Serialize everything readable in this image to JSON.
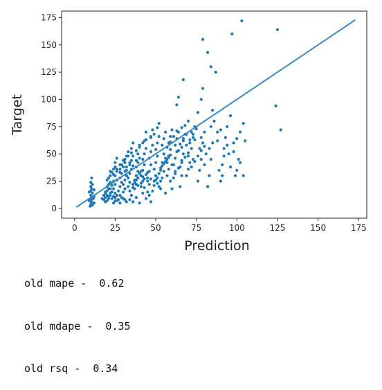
{
  "chart_data": {
    "type": "scatter",
    "xlabel": "Prediction",
    "ylabel": "Target",
    "xlim": [
      -8,
      180
    ],
    "ylim": [
      -9,
      181
    ],
    "xticks": [
      "0",
      "25",
      "50",
      "75",
      "100",
      "125",
      "150",
      "175"
    ],
    "yticks": [
      "0",
      "25",
      "50",
      "75",
      "100",
      "125",
      "150",
      "175"
    ],
    "xtick_values": [
      0,
      25,
      50,
      75,
      100,
      125,
      150,
      175
    ],
    "ytick_values": [
      0,
      25,
      50,
      75,
      100,
      125,
      150,
      175
    ],
    "grid": false,
    "point_color": "#1f77b4",
    "line_color": "#3b88c4",
    "reference_line": {
      "x": [
        1,
        173
      ],
      "y": [
        1,
        173
      ]
    },
    "points": [
      [
        9.5,
        2
      ],
      [
        10,
        4
      ],
      [
        10.5,
        6
      ],
      [
        10,
        8
      ],
      [
        11,
        10
      ],
      [
        10,
        12
      ],
      [
        11,
        14
      ],
      [
        10,
        16
      ],
      [
        10.5,
        18
      ],
      [
        10,
        20
      ],
      [
        11,
        22
      ],
      [
        10,
        24
      ],
      [
        10.5,
        28
      ],
      [
        11,
        3
      ],
      [
        12,
        5
      ],
      [
        9,
        7
      ],
      [
        11.5,
        9
      ],
      [
        12,
        11
      ],
      [
        9,
        15
      ],
      [
        12,
        17
      ],
      [
        18,
        8
      ],
      [
        19,
        10
      ],
      [
        20,
        12
      ],
      [
        19,
        14
      ],
      [
        20,
        16
      ],
      [
        21,
        18
      ],
      [
        20,
        20
      ],
      [
        21,
        22
      ],
      [
        22,
        24
      ],
      [
        19,
        6
      ],
      [
        21,
        9
      ],
      [
        22,
        12
      ],
      [
        23,
        15
      ],
      [
        22,
        18
      ],
      [
        23,
        21
      ],
      [
        24,
        25
      ],
      [
        21,
        28
      ],
      [
        22,
        30
      ],
      [
        23,
        33
      ],
      [
        24,
        36
      ],
      [
        25,
        10
      ],
      [
        25,
        14
      ],
      [
        24,
        18
      ],
      [
        25,
        22
      ],
      [
        26,
        26
      ],
      [
        25,
        30
      ],
      [
        26,
        34
      ],
      [
        25,
        38
      ],
      [
        25,
        42
      ],
      [
        26,
        46
      ],
      [
        27,
        8
      ],
      [
        28,
        12
      ],
      [
        27,
        16
      ],
      [
        28,
        20
      ],
      [
        29,
        24
      ],
      [
        28,
        28
      ],
      [
        29,
        32
      ],
      [
        28,
        36
      ],
      [
        29,
        40
      ],
      [
        30,
        44
      ],
      [
        30,
        15
      ],
      [
        31,
        18
      ],
      [
        30,
        22
      ],
      [
        31,
        26
      ],
      [
        32,
        30
      ],
      [
        31,
        34
      ],
      [
        32,
        38
      ],
      [
        31,
        42
      ],
      [
        32,
        48
      ],
      [
        33,
        52
      ],
      [
        33,
        20
      ],
      [
        34,
        24
      ],
      [
        33,
        28
      ],
      [
        34,
        32
      ],
      [
        35,
        36
      ],
      [
        34,
        40
      ],
      [
        35,
        44
      ],
      [
        36,
        48
      ],
      [
        35,
        55
      ],
      [
        36,
        60
      ],
      [
        37,
        18
      ],
      [
        38,
        22
      ],
      [
        37,
        26
      ],
      [
        38,
        30
      ],
      [
        39,
        34
      ],
      [
        38,
        38
      ],
      [
        39,
        42
      ],
      [
        40,
        46
      ],
      [
        39,
        50
      ],
      [
        40,
        58
      ],
      [
        41,
        20
      ],
      [
        42,
        25
      ],
      [
        41,
        30
      ],
      [
        42,
        35
      ],
      [
        43,
        40
      ],
      [
        42,
        45
      ],
      [
        43,
        50
      ],
      [
        44,
        55
      ],
      [
        43,
        62
      ],
      [
        44,
        70
      ],
      [
        45,
        15
      ],
      [
        46,
        22
      ],
      [
        45,
        28
      ],
      [
        46,
        34
      ],
      [
        47,
        40
      ],
      [
        46,
        46
      ],
      [
        47,
        52
      ],
      [
        48,
        58
      ],
      [
        47,
        66
      ],
      [
        48,
        72
      ],
      [
        49,
        25
      ],
      [
        50,
        30
      ],
      [
        49,
        36
      ],
      [
        50,
        42
      ],
      [
        51,
        48
      ],
      [
        50,
        54
      ],
      [
        51,
        60
      ],
      [
        52,
        66
      ],
      [
        51,
        74
      ],
      [
        52,
        78
      ],
      [
        53,
        18
      ],
      [
        54,
        28
      ],
      [
        53,
        35
      ],
      [
        54,
        42
      ],
      [
        55,
        50
      ],
      [
        54,
        58
      ],
      [
        55,
        64
      ],
      [
        56,
        70
      ],
      [
        55,
        34
      ],
      [
        56,
        46
      ],
      [
        57,
        30
      ],
      [
        58,
        36
      ],
      [
        57,
        42
      ],
      [
        58,
        48
      ],
      [
        59,
        54
      ],
      [
        58,
        60
      ],
      [
        59,
        66
      ],
      [
        60,
        72
      ],
      [
        59,
        25
      ],
      [
        60,
        40
      ],
      [
        61,
        28
      ],
      [
        62,
        34
      ],
      [
        61,
        40
      ],
      [
        62,
        46
      ],
      [
        63,
        52
      ],
      [
        62,
        58
      ],
      [
        63,
        64
      ],
      [
        64,
        70
      ],
      [
        63,
        95
      ],
      [
        64,
        102
      ],
      [
        65,
        20
      ],
      [
        66,
        30
      ],
      [
        65,
        38
      ],
      [
        66,
        44
      ],
      [
        67,
        50
      ],
      [
        66,
        56
      ],
      [
        67,
        62
      ],
      [
        68,
        68
      ],
      [
        67,
        118
      ],
      [
        68,
        76
      ],
      [
        69,
        30
      ],
      [
        70,
        36
      ],
      [
        71,
        42
      ],
      [
        70,
        48
      ],
      [
        72,
        55
      ],
      [
        71,
        60
      ],
      [
        73,
        65
      ],
      [
        72,
        70
      ],
      [
        74,
        75
      ],
      [
        73,
        45
      ],
      [
        76,
        25
      ],
      [
        77,
        35
      ],
      [
        78,
        45
      ],
      [
        77,
        55
      ],
      [
        79,
        60
      ],
      [
        78,
        65
      ],
      [
        80,
        70
      ],
      [
        79,
        110
      ],
      [
        80,
        40
      ],
      [
        81,
        50
      ],
      [
        82,
        20
      ],
      [
        83,
        30
      ],
      [
        84,
        45
      ],
      [
        83,
        55
      ],
      [
        85,
        60
      ],
      [
        84,
        75
      ],
      [
        86,
        80
      ],
      [
        85,
        90
      ],
      [
        87,
        125
      ],
      [
        88,
        70
      ],
      [
        90,
        25
      ],
      [
        91,
        40
      ],
      [
        92,
        55
      ],
      [
        93,
        65
      ],
      [
        94,
        75
      ],
      [
        95,
        50
      ],
      [
        96,
        85
      ],
      [
        97,
        160
      ],
      [
        98,
        60
      ],
      [
        99,
        30
      ],
      [
        100,
        35
      ],
      [
        101,
        45
      ],
      [
        102,
        70
      ],
      [
        103,
        172
      ],
      [
        104,
        30
      ],
      [
        104,
        78
      ],
      [
        105,
        62
      ],
      [
        124,
        94
      ],
      [
        125,
        164
      ],
      [
        127,
        72
      ],
      [
        79,
        155
      ],
      [
        82,
        143
      ],
      [
        84,
        130
      ],
      [
        78,
        100
      ],
      [
        66,
        74
      ],
      [
        70,
        80
      ],
      [
        76,
        88
      ],
      [
        69,
        68
      ],
      [
        74,
        63
      ],
      [
        64,
        53
      ],
      [
        29,
        10
      ],
      [
        31,
        8
      ],
      [
        35,
        12
      ],
      [
        38,
        10
      ],
      [
        42,
        14
      ],
      [
        46,
        12
      ],
      [
        48,
        16
      ],
      [
        52,
        20
      ],
      [
        56,
        14
      ],
      [
        60,
        18
      ],
      [
        24,
        5
      ],
      [
        26,
        7
      ],
      [
        28,
        5
      ],
      [
        30,
        9
      ],
      [
        32,
        6
      ],
      [
        34,
        8
      ],
      [
        36,
        6
      ],
      [
        40,
        5
      ],
      [
        44,
        9
      ],
      [
        47,
        6
      ],
      [
        17,
        9
      ],
      [
        18,
        12
      ],
      [
        19,
        15
      ],
      [
        20,
        7
      ],
      [
        21,
        11
      ],
      [
        22,
        14
      ],
      [
        23,
        9
      ],
      [
        24,
        11
      ],
      [
        25,
        7
      ],
      [
        26,
        12
      ],
      [
        28,
        40
      ],
      [
        31,
        45
      ],
      [
        33,
        48
      ],
      [
        35,
        51
      ],
      [
        38,
        53
      ],
      [
        40,
        56
      ],
      [
        42,
        60
      ],
      [
        44,
        63
      ],
      [
        47,
        65
      ],
      [
        49,
        68
      ],
      [
        36,
        22
      ],
      [
        37,
        24
      ],
      [
        38,
        26
      ],
      [
        39,
        28
      ],
      [
        40,
        32
      ],
      [
        41,
        34
      ],
      [
        42,
        29
      ],
      [
        43,
        27
      ],
      [
        44,
        31
      ],
      [
        45,
        33
      ],
      [
        50,
        26
      ],
      [
        51,
        28
      ],
      [
        52,
        32
      ],
      [
        53,
        37
      ],
      [
        54,
        39
      ],
      [
        55,
        41
      ],
      [
        56,
        43
      ],
      [
        57,
        45
      ],
      [
        58,
        47
      ],
      [
        59,
        49
      ],
      [
        62,
        32
      ],
      [
        64,
        37
      ],
      [
        66,
        42
      ],
      [
        68,
        47
      ],
      [
        70,
        51
      ],
      [
        72,
        38
      ],
      [
        74,
        43
      ],
      [
        76,
        48
      ],
      [
        78,
        53
      ],
      [
        80,
        57
      ],
      [
        34,
        16
      ],
      [
        36,
        19
      ],
      [
        39,
        21
      ],
      [
        41,
        23
      ],
      [
        43,
        19
      ],
      [
        45,
        25
      ],
      [
        47,
        27
      ],
      [
        49,
        21
      ],
      [
        51,
        23
      ],
      [
        53,
        25
      ],
      [
        20,
        26
      ],
      [
        22,
        34
      ],
      [
        24,
        31
      ],
      [
        26,
        36
      ],
      [
        28,
        33
      ],
      [
        30,
        38
      ],
      [
        32,
        35
      ],
      [
        34,
        42
      ],
      [
        36,
        39
      ],
      [
        38,
        44
      ],
      [
        57,
        56
      ],
      [
        59,
        61
      ],
      [
        61,
        66
      ],
      [
        63,
        71
      ],
      [
        65,
        59
      ],
      [
        67,
        64
      ],
      [
        69,
        58
      ],
      [
        71,
        63
      ],
      [
        73,
        68
      ],
      [
        75,
        73
      ],
      [
        88,
        62
      ],
      [
        90,
        72
      ],
      [
        92,
        48
      ],
      [
        94,
        58
      ],
      [
        96,
        38
      ],
      [
        98,
        52
      ],
      [
        100,
        64
      ],
      [
        102,
        42
      ],
      [
        89,
        35
      ],
      [
        91,
        30
      ]
    ]
  },
  "metrics": {
    "mape_line": "old mape -  0.62",
    "mdape_line": "old mdape -  0.35",
    "rsq_line": "old rsq -  0.34"
  }
}
